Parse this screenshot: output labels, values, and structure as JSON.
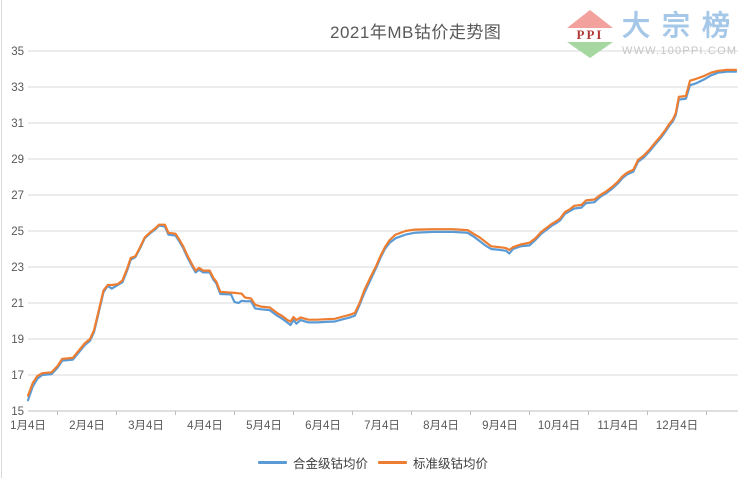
{
  "logo": {
    "badge": "PPI",
    "brand": "大宗榜",
    "url_text": "WWW.100PPI.COM"
  },
  "colors": {
    "grid": "#d9d9d9",
    "axis": "#bfbfbf",
    "tick_label": "#595959",
    "title_text": "#595959",
    "legend_text": "#404040",
    "series_alloy_blue": "#5B9BD5",
    "series_standard_orange": "#ED7D31",
    "logo_red": "#f2a19c",
    "logo_green": "#a6d7a0",
    "brand_blue": "#a6c8e8",
    "watermark_gray": "#c6c6c6"
  },
  "chart_data": {
    "type": "line",
    "title": "2021年MB钴价走势图",
    "x_labels": [
      "1月4日",
      "2月4日",
      "3月4日",
      "4月4日",
      "5月4日",
      "6月4日",
      "7月4日",
      "8月4日",
      "9月4日",
      "10月4日",
      "11月4日",
      "12月4日"
    ],
    "x_unit": "months_after_jan4",
    "ylim": [
      15,
      35
    ],
    "yticks": [
      15,
      17,
      19,
      21,
      23,
      25,
      27,
      29,
      31,
      33,
      35
    ],
    "grid": true,
    "legend_position": "bottom",
    "x": [
      0,
      0.08,
      0.16,
      0.24,
      0.4,
      0.5,
      0.58,
      0.76,
      0.86,
      0.96,
      1.05,
      1.12,
      1.2,
      1.28,
      1.35,
      1.42,
      1.52,
      1.6,
      1.68,
      1.74,
      1.82,
      1.9,
      1.98,
      2.08,
      2.16,
      2.22,
      2.32,
      2.38,
      2.5,
      2.56,
      2.63,
      2.7,
      2.78,
      2.84,
      2.9,
      2.97,
      3.08,
      3.14,
      3.19,
      3.26,
      3.44,
      3.5,
      3.57,
      3.62,
      3.68,
      3.78,
      3.85,
      3.95,
      4.1,
      4.22,
      4.32,
      4.4,
      4.45,
      4.5,
      4.55,
      4.62,
      4.75,
      4.9,
      5.05,
      5.2,
      5.34,
      5.46,
      5.54,
      5.62,
      5.7,
      5.8,
      5.9,
      5.98,
      6.05,
      6.13,
      6.23,
      6.4,
      6.55,
      6.85,
      7.2,
      7.45,
      7.55,
      7.65,
      7.75,
      7.85,
      8.0,
      8.1,
      8.16,
      8.22,
      8.35,
      8.5,
      8.6,
      8.7,
      8.8,
      8.88,
      8.96,
      9.02,
      9.1,
      9.18,
      9.26,
      9.38,
      9.46,
      9.6,
      9.7,
      9.8,
      9.9,
      10.0,
      10.08,
      10.16,
      10.26,
      10.34,
      10.44,
      10.54,
      10.64,
      10.72,
      10.8,
      10.87,
      10.93,
      10.98,
      11.03,
      11.15,
      11.22,
      11.32,
      11.45,
      11.58,
      11.7,
      11.85,
      12.0
    ],
    "series": [
      {
        "name": "合金级钴均价",
        "color": "#5B9BD5",
        "values": [
          15.6,
          16.35,
          16.8,
          17.0,
          17.05,
          17.4,
          17.8,
          17.85,
          18.25,
          18.65,
          18.9,
          19.4,
          20.5,
          21.6,
          21.95,
          21.8,
          22.0,
          22.15,
          22.8,
          23.4,
          23.55,
          24.05,
          24.6,
          24.9,
          25.1,
          25.3,
          25.25,
          24.8,
          24.75,
          24.45,
          24.05,
          23.55,
          23.05,
          22.7,
          22.85,
          22.7,
          22.7,
          22.3,
          22.1,
          21.5,
          21.48,
          21.05,
          21.0,
          21.12,
          21.1,
          21.1,
          20.7,
          20.65,
          20.6,
          20.3,
          20.1,
          19.9,
          19.78,
          20.05,
          19.85,
          20.05,
          19.92,
          19.92,
          19.95,
          19.97,
          20.1,
          20.2,
          20.3,
          20.9,
          21.55,
          22.25,
          22.95,
          23.55,
          24.0,
          24.35,
          24.6,
          24.8,
          24.9,
          24.95,
          24.95,
          24.9,
          24.7,
          24.45,
          24.2,
          24.0,
          23.95,
          23.9,
          23.75,
          24.0,
          24.15,
          24.2,
          24.5,
          24.85,
          25.1,
          25.3,
          25.45,
          25.6,
          25.95,
          26.1,
          26.25,
          26.3,
          26.55,
          26.6,
          26.9,
          27.1,
          27.35,
          27.65,
          27.95,
          28.15,
          28.3,
          28.85,
          29.1,
          29.45,
          29.85,
          30.15,
          30.5,
          30.85,
          31.1,
          31.45,
          32.3,
          32.35,
          33.1,
          33.2,
          33.4,
          33.65,
          33.8,
          33.85,
          33.85
        ]
      },
      {
        "name": "标准级钴均价",
        "color": "#ED7D31",
        "values": [
          15.85,
          16.55,
          16.95,
          17.1,
          17.15,
          17.5,
          17.9,
          17.95,
          18.35,
          18.75,
          19.0,
          19.5,
          20.6,
          21.7,
          22.0,
          22.0,
          22.05,
          22.25,
          22.9,
          23.5,
          23.6,
          24.1,
          24.65,
          24.95,
          25.15,
          25.35,
          25.35,
          24.9,
          24.85,
          24.55,
          24.15,
          23.65,
          23.15,
          22.8,
          22.95,
          22.8,
          22.8,
          22.4,
          22.2,
          21.62,
          21.58,
          21.56,
          21.54,
          21.52,
          21.3,
          21.25,
          20.9,
          20.8,
          20.75,
          20.45,
          20.25,
          20.05,
          19.97,
          20.22,
          20.05,
          20.2,
          20.07,
          20.07,
          20.1,
          20.12,
          20.25,
          20.35,
          20.45,
          21.0,
          21.7,
          22.4,
          23.05,
          23.65,
          24.1,
          24.5,
          24.8,
          25.0,
          25.08,
          25.1,
          25.1,
          25.05,
          24.85,
          24.65,
          24.4,
          24.15,
          24.1,
          24.05,
          23.95,
          24.1,
          24.25,
          24.35,
          24.6,
          24.95,
          25.2,
          25.4,
          25.55,
          25.7,
          26.05,
          26.2,
          26.4,
          26.45,
          26.7,
          26.75,
          27.0,
          27.2,
          27.45,
          27.75,
          28.05,
          28.25,
          28.4,
          28.95,
          29.2,
          29.55,
          29.95,
          30.25,
          30.6,
          30.95,
          31.2,
          31.55,
          32.45,
          32.5,
          33.35,
          33.45,
          33.6,
          33.8,
          33.9,
          33.95,
          33.95
        ]
      }
    ]
  }
}
